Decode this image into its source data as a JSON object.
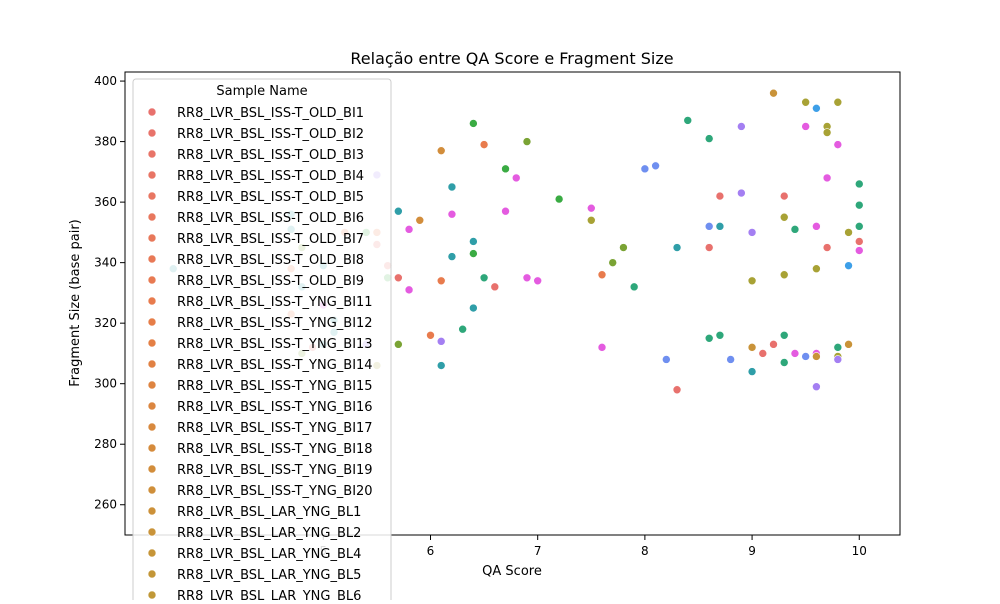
{
  "chart_data": {
    "type": "scatter",
    "title": "Relação entre QA Score e Fragment Size",
    "xlabel": "QA Score",
    "ylabel": "Fragment Size (base pair)",
    "xlim": [
      3.15,
      10.38
    ],
    "ylim": [
      250,
      403
    ],
    "x_ticks": [
      "5",
      "6",
      "7",
      "8",
      "9",
      "10"
    ],
    "x_tick_values": [
      5,
      6,
      7,
      8,
      9,
      10
    ],
    "y_ticks": [
      "260",
      "280",
      "300",
      "320",
      "340",
      "360",
      "380",
      "400"
    ],
    "y_tick_values": [
      260,
      280,
      300,
      320,
      340,
      360,
      380,
      400
    ],
    "grid": false,
    "legend": {
      "title": "Sample Name",
      "placement": "upper-left",
      "entries": [
        {
          "name": "RR8_LVR_BSL_ISS-T_OLD_BI1",
          "color": "#e8716d"
        },
        {
          "name": "RR8_LVR_BSL_ISS-T_OLD_BI2",
          "color": "#e8736a"
        },
        {
          "name": "RR8_LVR_BSL_ISS-T_OLD_BI3",
          "color": "#e87468"
        },
        {
          "name": "RR8_LVR_BSL_ISS-T_OLD_BI4",
          "color": "#e87565"
        },
        {
          "name": "RR8_LVR_BSL_ISS-T_OLD_BI5",
          "color": "#e87662"
        },
        {
          "name": "RR8_LVR_BSL_ISS-T_OLD_BI6",
          "color": "#e8775e"
        },
        {
          "name": "RR8_LVR_BSL_ISS-T_OLD_BI7",
          "color": "#e8785a"
        },
        {
          "name": "RR8_LVR_BSL_ISS-T_OLD_BI8",
          "color": "#e87956"
        },
        {
          "name": "RR8_LVR_BSL_ISS-T_OLD_BI9",
          "color": "#e87a52"
        },
        {
          "name": "RR8_LVR_BSL_ISS-T_YNG_BI11",
          "color": "#e87b4d"
        },
        {
          "name": "RR8_LVR_BSL_ISS-T_YNG_BI12",
          "color": "#e67d48"
        },
        {
          "name": "RR8_LVR_BSL_ISS-T_YNG_BI13",
          "color": "#e47f45"
        },
        {
          "name": "RR8_LVR_BSL_ISS-T_YNG_BI14",
          "color": "#e18143"
        },
        {
          "name": "RR8_LVR_BSL_ISS-T_YNG_BI15",
          "color": "#de8441"
        },
        {
          "name": "RR8_LVR_BSL_ISS-T_YNG_BI16",
          "color": "#db8640"
        },
        {
          "name": "RR8_LVR_BSL_ISS-T_YNG_BI17",
          "color": "#d8893e"
        },
        {
          "name": "RR8_LVR_BSL_ISS-T_YNG_BI18",
          "color": "#d58b3c"
        },
        {
          "name": "RR8_LVR_BSL_ISS-T_YNG_BI19",
          "color": "#d28d3b"
        },
        {
          "name": "RR8_LVR_BSL_ISS-T_YNG_BI20",
          "color": "#cf8f3a"
        },
        {
          "name": "RR8_LVR_BSL_LAR_YNG_BL1",
          "color": "#cc9139"
        },
        {
          "name": "RR8_LVR_BSL_LAR_YNG_BL2",
          "color": "#c99339"
        },
        {
          "name": "RR8_LVR_BSL_LAR_YNG_BL4",
          "color": "#c69538"
        },
        {
          "name": "RR8_LVR_BSL_LAR_YNG_BL5",
          "color": "#c39637"
        },
        {
          "name": "RR8_LVR_BSL_LAR_YNG_BL6",
          "color": "#c09837"
        }
      ]
    },
    "points": [
      {
        "x": 3.6,
        "y": 338,
        "color": "#2f9ea8"
      },
      {
        "x": 4.7,
        "y": 356,
        "color": "#2f9ea8"
      },
      {
        "x": 4.7,
        "y": 351,
        "color": "#2f9ea8"
      },
      {
        "x": 4.7,
        "y": 338,
        "color": "#e87b4d"
      },
      {
        "x": 4.7,
        "y": 323,
        "color": "#e87b4d"
      },
      {
        "x": 4.8,
        "y": 345,
        "color": "#7aa334"
      },
      {
        "x": 4.8,
        "y": 332,
        "color": "#2f9ea8"
      },
      {
        "x": 4.8,
        "y": 310,
        "color": "#7aa334"
      },
      {
        "x": 4.9,
        "y": 312,
        "color": "#e8716d"
      },
      {
        "x": 5.0,
        "y": 339,
        "color": "#2f9ea8"
      },
      {
        "x": 5.0,
        "y": 326,
        "color": "#e45be0"
      },
      {
        "x": 5.0,
        "y": 313,
        "color": "#2f9ea8"
      },
      {
        "x": 5.1,
        "y": 321,
        "color": "#2f9ea8"
      },
      {
        "x": 5.1,
        "y": 317,
        "color": "#2f9ea8"
      },
      {
        "x": 5.2,
        "y": 350,
        "color": "#e87b4d"
      },
      {
        "x": 5.4,
        "y": 350,
        "color": "#3aab43"
      },
      {
        "x": 5.4,
        "y": 313,
        "color": "#a47ff2"
      },
      {
        "x": 5.5,
        "y": 369,
        "color": "#a47ff2"
      },
      {
        "x": 5.5,
        "y": 350,
        "color": "#e87b4d"
      },
      {
        "x": 5.5,
        "y": 346,
        "color": "#e8716d"
      },
      {
        "x": 5.5,
        "y": 306,
        "color": "#a8a235"
      },
      {
        "x": 5.6,
        "y": 339,
        "color": "#e8716d"
      },
      {
        "x": 5.6,
        "y": 335,
        "color": "#3aab43"
      },
      {
        "x": 5.7,
        "y": 357,
        "color": "#2f9ea8"
      },
      {
        "x": 5.7,
        "y": 335,
        "color": "#e8716d"
      },
      {
        "x": 5.7,
        "y": 313,
        "color": "#7aa334"
      },
      {
        "x": 5.8,
        "y": 351,
        "color": "#e45be0"
      },
      {
        "x": 5.8,
        "y": 331,
        "color": "#e45be0"
      },
      {
        "x": 5.9,
        "y": 354,
        "color": "#d28d3b"
      },
      {
        "x": 6.0,
        "y": 316,
        "color": "#e87b4d"
      },
      {
        "x": 6.1,
        "y": 377,
        "color": "#d28d3b"
      },
      {
        "x": 6.1,
        "y": 334,
        "color": "#e87b4d"
      },
      {
        "x": 6.1,
        "y": 314,
        "color": "#a47ff2"
      },
      {
        "x": 6.1,
        "y": 306,
        "color": "#2f9ea8"
      },
      {
        "x": 6.2,
        "y": 365,
        "color": "#2f9ea8"
      },
      {
        "x": 6.2,
        "y": 356,
        "color": "#e45be0"
      },
      {
        "x": 6.2,
        "y": 342,
        "color": "#2f9ea8"
      },
      {
        "x": 6.3,
        "y": 318,
        "color": "#2ea77a"
      },
      {
        "x": 6.4,
        "y": 386,
        "color": "#3aab43"
      },
      {
        "x": 6.4,
        "y": 347,
        "color": "#2f9ea8"
      },
      {
        "x": 6.4,
        "y": 343,
        "color": "#3aab43"
      },
      {
        "x": 6.4,
        "y": 325,
        "color": "#2f9ea8"
      },
      {
        "x": 6.5,
        "y": 379,
        "color": "#e87b4d"
      },
      {
        "x": 6.5,
        "y": 335,
        "color": "#2ea77a"
      },
      {
        "x": 6.6,
        "y": 332,
        "color": "#e8716d"
      },
      {
        "x": 6.7,
        "y": 371,
        "color": "#3aab43"
      },
      {
        "x": 6.7,
        "y": 357,
        "color": "#e45be0"
      },
      {
        "x": 6.8,
        "y": 368,
        "color": "#e45be0"
      },
      {
        "x": 6.9,
        "y": 380,
        "color": "#7aa334"
      },
      {
        "x": 6.9,
        "y": 335,
        "color": "#e45be0"
      },
      {
        "x": 7.0,
        "y": 334,
        "color": "#e45be0"
      },
      {
        "x": 7.2,
        "y": 361,
        "color": "#3aab43"
      },
      {
        "x": 7.5,
        "y": 358,
        "color": "#e45be0"
      },
      {
        "x": 7.5,
        "y": 354,
        "color": "#a8a235"
      },
      {
        "x": 7.6,
        "y": 336,
        "color": "#e87b4d"
      },
      {
        "x": 7.6,
        "y": 312,
        "color": "#e45be0"
      },
      {
        "x": 7.7,
        "y": 340,
        "color": "#7aa334"
      },
      {
        "x": 7.8,
        "y": 345,
        "color": "#7aa334"
      },
      {
        "x": 7.9,
        "y": 332,
        "color": "#2ea77a"
      },
      {
        "x": 8.0,
        "y": 371,
        "color": "#6f8ff0"
      },
      {
        "x": 8.1,
        "y": 372,
        "color": "#6f8ff0"
      },
      {
        "x": 8.2,
        "y": 308,
        "color": "#6f8ff0"
      },
      {
        "x": 8.3,
        "y": 345,
        "color": "#2f9ea8"
      },
      {
        "x": 8.3,
        "y": 298,
        "color": "#e8716d"
      },
      {
        "x": 8.4,
        "y": 387,
        "color": "#2ea77a"
      },
      {
        "x": 8.6,
        "y": 381,
        "color": "#2ea77a"
      },
      {
        "x": 8.6,
        "y": 352,
        "color": "#6f8ff0"
      },
      {
        "x": 8.6,
        "y": 345,
        "color": "#e8716d"
      },
      {
        "x": 8.6,
        "y": 315,
        "color": "#2ea77a"
      },
      {
        "x": 8.7,
        "y": 362,
        "color": "#e8716d"
      },
      {
        "x": 8.7,
        "y": 352,
        "color": "#2f9ea8"
      },
      {
        "x": 8.7,
        "y": 316,
        "color": "#2ea77a"
      },
      {
        "x": 8.8,
        "y": 308,
        "color": "#6f8ff0"
      },
      {
        "x": 8.9,
        "y": 385,
        "color": "#a47ff2"
      },
      {
        "x": 8.9,
        "y": 363,
        "color": "#a47ff2"
      },
      {
        "x": 9.0,
        "y": 350,
        "color": "#a47ff2"
      },
      {
        "x": 9.0,
        "y": 334,
        "color": "#a8a235"
      },
      {
        "x": 9.0,
        "y": 312,
        "color": "#c99339"
      },
      {
        "x": 9.0,
        "y": 304,
        "color": "#2f9ea8"
      },
      {
        "x": 9.1,
        "y": 310,
        "color": "#e8716d"
      },
      {
        "x": 9.2,
        "y": 396,
        "color": "#c99339"
      },
      {
        "x": 9.2,
        "y": 313,
        "color": "#e8716d"
      },
      {
        "x": 9.3,
        "y": 362,
        "color": "#e8716d"
      },
      {
        "x": 9.3,
        "y": 355,
        "color": "#a8a235"
      },
      {
        "x": 9.3,
        "y": 336,
        "color": "#a8a235"
      },
      {
        "x": 9.3,
        "y": 316,
        "color": "#2ea77a"
      },
      {
        "x": 9.3,
        "y": 307,
        "color": "#2ea77a"
      },
      {
        "x": 9.4,
        "y": 351,
        "color": "#2ea77a"
      },
      {
        "x": 9.4,
        "y": 310,
        "color": "#e45be0"
      },
      {
        "x": 9.5,
        "y": 393,
        "color": "#a8a235"
      },
      {
        "x": 9.5,
        "y": 385,
        "color": "#e45be0"
      },
      {
        "x": 9.5,
        "y": 309,
        "color": "#6f8ff0"
      },
      {
        "x": 9.6,
        "y": 391,
        "color": "#3d9fe8"
      },
      {
        "x": 9.6,
        "y": 352,
        "color": "#e45be0"
      },
      {
        "x": 9.6,
        "y": 338,
        "color": "#a8a235"
      },
      {
        "x": 9.6,
        "y": 310,
        "color": "#e45be0"
      },
      {
        "x": 9.6,
        "y": 309,
        "color": "#c99339"
      },
      {
        "x": 9.6,
        "y": 299,
        "color": "#a47ff2"
      },
      {
        "x": 9.7,
        "y": 385,
        "color": "#a8a235"
      },
      {
        "x": 9.7,
        "y": 383,
        "color": "#a8a235"
      },
      {
        "x": 9.7,
        "y": 368,
        "color": "#e45be0"
      },
      {
        "x": 9.7,
        "y": 345,
        "color": "#e8716d"
      },
      {
        "x": 9.8,
        "y": 393,
        "color": "#a8a235"
      },
      {
        "x": 9.8,
        "y": 379,
        "color": "#e45be0"
      },
      {
        "x": 9.8,
        "y": 312,
        "color": "#2ea77a"
      },
      {
        "x": 9.8,
        "y": 309,
        "color": "#a8a235"
      },
      {
        "x": 9.8,
        "y": 308,
        "color": "#a47ff2"
      },
      {
        "x": 9.9,
        "y": 350,
        "color": "#a8a235"
      },
      {
        "x": 9.9,
        "y": 339,
        "color": "#3d9fe8"
      },
      {
        "x": 9.9,
        "y": 313,
        "color": "#c99339"
      },
      {
        "x": 10.0,
        "y": 366,
        "color": "#2ea77a"
      },
      {
        "x": 10.0,
        "y": 359,
        "color": "#2ea77a"
      },
      {
        "x": 10.0,
        "y": 352,
        "color": "#2ea77a"
      },
      {
        "x": 10.0,
        "y": 347,
        "color": "#e8716d"
      },
      {
        "x": 10.0,
        "y": 344,
        "color": "#e45be0"
      }
    ]
  }
}
